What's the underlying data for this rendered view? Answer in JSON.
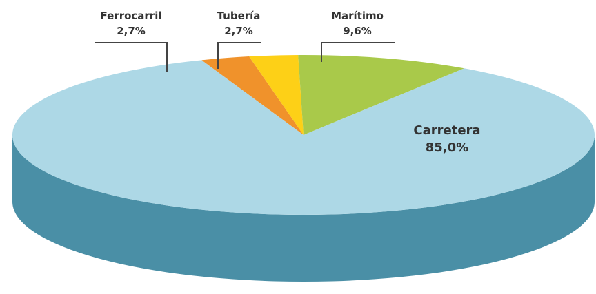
{
  "chart_data": {
    "type": "pie",
    "title": "",
    "slices": [
      {
        "label": "Carretera",
        "value": 85.0,
        "value_label": "85,0%",
        "color": "#add8e6",
        "side_color": "#4a8fa6"
      },
      {
        "label": "Ferrocarril",
        "value": 2.7,
        "value_label": "2,7%",
        "color": "#f0922b",
        "side_color": "#c26d12"
      },
      {
        "label": "Tubería",
        "value": 2.7,
        "value_label": "2,7%",
        "color": "#fdd017",
        "side_color": "#d1a800"
      },
      {
        "label": "Marítimo",
        "value": 9.6,
        "value_label": "9,6%",
        "color": "#a9c94a",
        "side_color": "#7f9a2b"
      }
    ],
    "style": "3d"
  }
}
